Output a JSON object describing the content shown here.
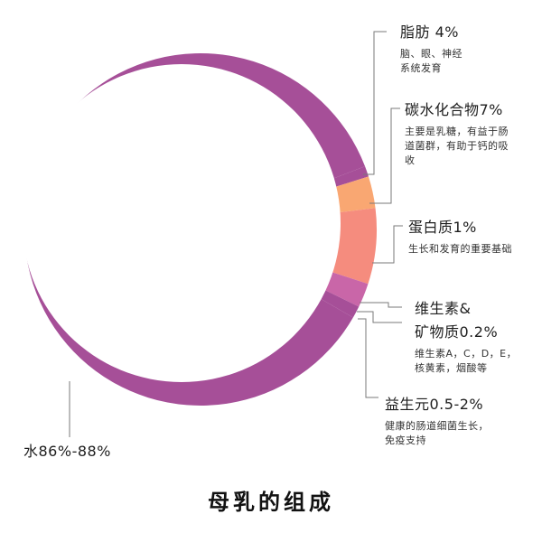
{
  "title": "母乳的组成",
  "colors": {
    "water": "#a64f98",
    "fat": "#a64f98",
    "carb": "#f9a772",
    "protein": "#f58c7e",
    "vitamin": "#c966a8",
    "probiotic": "#a64f98",
    "line": "#7a7a7a"
  },
  "chart_data": {
    "type": "pie",
    "title": "母乳的组成",
    "slices": [
      {
        "key": "water",
        "label": "水86%-88%",
        "value": 87,
        "description": ""
      },
      {
        "key": "fat",
        "label": "脂肪 4%",
        "value": 4,
        "description": "脑、眼、神经系统发育"
      },
      {
        "key": "carb",
        "label": "碳水化合物7%",
        "value": 7,
        "description": "主要是乳糖，有益于肠道菌群，有助于钙的吸收"
      },
      {
        "key": "protein",
        "label": "蛋白质1%",
        "value": 1,
        "description": "生长和发育的重要基础"
      },
      {
        "key": "vitamin",
        "label": "维生素&矿物质0.2%",
        "value": 0.2,
        "description": "维生素A，C，D，E，核黄素，烟酸等"
      },
      {
        "key": "probiotic",
        "label": "益生元0.5-2%",
        "value": 1.25,
        "description": "健康的肠道细菌生长，免疫支持"
      }
    ]
  },
  "labels": {
    "fat": {
      "title": "脂肪 4%",
      "desc1": "脑、眼、神经",
      "desc2": "系统发育"
    },
    "carb": {
      "title": "碳水化合物7%",
      "desc1": "主要是乳糖，有益于肠",
      "desc2": "道菌群，有助于钙的吸",
      "desc3": "收"
    },
    "protein": {
      "title": "蛋白质1%",
      "desc1": "生长和发育的重要基础"
    },
    "vitamin": {
      "title1": "维生素&",
      "title2": "矿物质0.2%",
      "desc1": "维生素A，C，D，E，",
      "desc2": "核黄素，烟酸等"
    },
    "probiotic": {
      "title": "益生元0.5-2%",
      "desc1": "健康的肠道细菌生长，",
      "desc2": "免疫支持"
    },
    "water": {
      "title": "水86%-88%"
    }
  }
}
